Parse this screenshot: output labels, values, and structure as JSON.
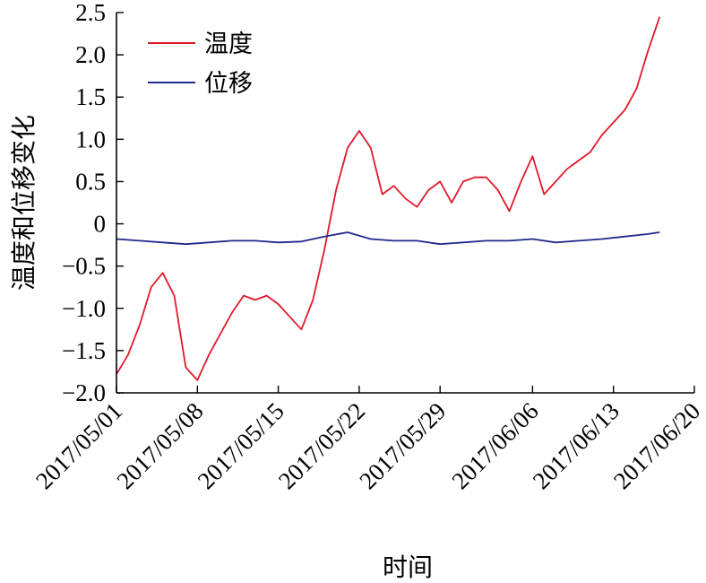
{
  "chart_data": {
    "type": "line",
    "xlabel": "时间",
    "ylabel": "温度和位移变化",
    "ylim": [
      -2.0,
      2.5
    ],
    "yticks": [
      "2.5",
      "2.0",
      "1.5",
      "1.0",
      "0.5",
      "0",
      "-0.5",
      "-1.0",
      "-1.5",
      "-2.0"
    ],
    "xlim": [
      "2017/05/01",
      "2017/06/20"
    ],
    "xticks": [
      "2017/05/01",
      "2017/05/08",
      "2017/05/15",
      "2017/05/22",
      "2017/05/29",
      "2017/06/06",
      "2017/06/13",
      "2017/06/20"
    ],
    "grid": false,
    "legend": "top-left",
    "series": [
      {
        "name": "温度",
        "color": "#e0192a",
        "x": [
          "2017/05/01",
          "2017/05/02",
          "2017/05/03",
          "2017/05/04",
          "2017/05/05",
          "2017/05/06",
          "2017/05/07",
          "2017/05/08",
          "2017/05/09",
          "2017/05/10",
          "2017/05/11",
          "2017/05/12",
          "2017/05/13",
          "2017/05/14",
          "2017/05/15",
          "2017/05/16",
          "2017/05/17",
          "2017/05/18",
          "2017/05/19",
          "2017/05/20",
          "2017/05/21",
          "2017/05/22",
          "2017/05/23",
          "2017/05/24",
          "2017/05/25",
          "2017/05/26",
          "2017/05/27",
          "2017/05/28",
          "2017/05/29",
          "2017/05/30",
          "2017/05/31",
          "2017/06/01",
          "2017/06/02",
          "2017/06/03",
          "2017/06/04",
          "2017/06/05",
          "2017/06/06",
          "2017/06/07",
          "2017/06/08",
          "2017/06/09",
          "2017/06/10",
          "2017/06/11",
          "2017/06/12",
          "2017/06/13",
          "2017/06/14",
          "2017/06/15",
          "2017/06/16",
          "2017/06/17"
        ],
        "values": [
          -1.78,
          -1.55,
          -1.2,
          -0.75,
          -0.58,
          -0.85,
          -1.7,
          -1.85,
          -1.55,
          -1.3,
          -1.05,
          -0.85,
          -0.9,
          -0.85,
          -0.95,
          -1.1,
          -1.25,
          -0.9,
          -0.3,
          0.4,
          0.9,
          1.1,
          0.9,
          0.35,
          0.45,
          0.3,
          0.2,
          0.4,
          0.5,
          0.25,
          0.5,
          0.55,
          0.55,
          0.4,
          0.15,
          0.5,
          0.8,
          0.35,
          0.5,
          0.65,
          0.75,
          0.85,
          1.05,
          1.2,
          1.35,
          1.6,
          2.05,
          2.45
        ]
      },
      {
        "name": "位移",
        "color": "#1f2a8c",
        "x": [
          "2017/05/01",
          "2017/05/03",
          "2017/05/05",
          "2017/05/07",
          "2017/05/09",
          "2017/05/11",
          "2017/05/13",
          "2017/05/15",
          "2017/05/17",
          "2017/05/19",
          "2017/05/21",
          "2017/05/23",
          "2017/05/25",
          "2017/05/27",
          "2017/05/29",
          "2017/05/31",
          "2017/06/02",
          "2017/06/04",
          "2017/06/06",
          "2017/06/08",
          "2017/06/10",
          "2017/06/12",
          "2017/06/14",
          "2017/06/16",
          "2017/06/17"
        ],
        "values": [
          -0.18,
          -0.2,
          -0.22,
          -0.24,
          -0.22,
          -0.2,
          -0.2,
          -0.22,
          -0.21,
          -0.15,
          -0.1,
          -0.18,
          -0.2,
          -0.2,
          -0.24,
          -0.22,
          -0.2,
          -0.2,
          -0.18,
          -0.22,
          -0.2,
          -0.18,
          -0.15,
          -0.12,
          -0.1
        ]
      }
    ]
  }
}
